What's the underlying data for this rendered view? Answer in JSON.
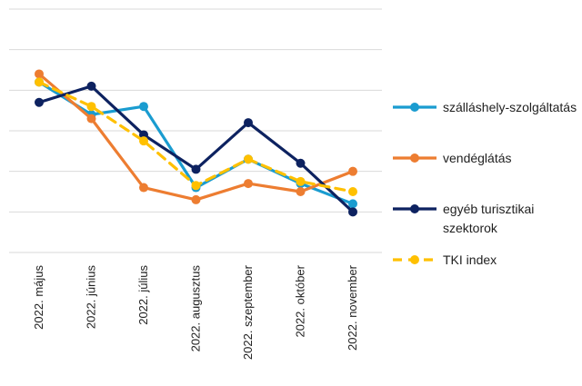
{
  "chart_data": {
    "type": "line",
    "title": "",
    "xlabel": "",
    "ylabel": "",
    "ylim": [
      0,
      6
    ],
    "grid": true,
    "legend_position": "right",
    "categories": [
      "2022. május",
      "2022. június",
      "2022. július",
      "2022. augusztus",
      "2022. szeptember",
      "2022. október",
      "2022. november"
    ],
    "series": [
      {
        "name": "szálláshely-szolgáltatás",
        "color": "#1A9CD0",
        "dashed": false,
        "values": [
          4.2,
          3.4,
          3.6,
          1.6,
          2.3,
          1.7,
          1.2
        ]
      },
      {
        "name": "vendéglátás",
        "color": "#ED7D31",
        "dashed": false,
        "values": [
          4.4,
          3.3,
          1.6,
          1.3,
          1.7,
          1.5,
          2.0
        ]
      },
      {
        "name": "egyéb turisztikai szektorok",
        "color": "#0D2260",
        "dashed": false,
        "values": [
          3.7,
          4.1,
          2.9,
          2.05,
          3.2,
          2.2,
          1.0
        ]
      },
      {
        "name": "TKI index",
        "color": "#FFC000",
        "dashed": true,
        "values": [
          4.2,
          3.6,
          2.75,
          1.65,
          2.3,
          1.75,
          1.5
        ]
      }
    ]
  }
}
